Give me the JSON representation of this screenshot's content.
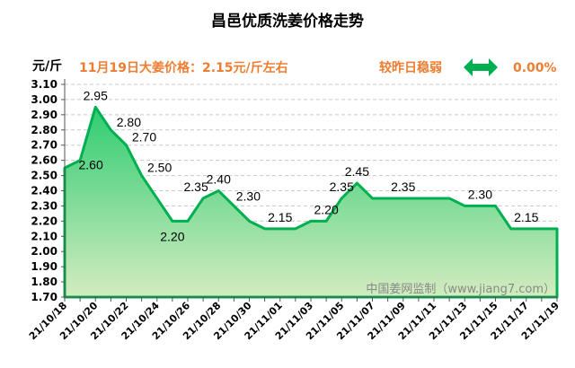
{
  "chart_data": {
    "type": "area",
    "title": "昌邑优质洗姜价格走势",
    "ylabel": "元/斤",
    "headline": "11月19日大姜价格：2.15元/斤左右",
    "change_text": "较昨日稳弱",
    "change_percent": "0.00%",
    "watermark": "中国姜网监制（www.jiang7.com）",
    "ylim": [
      1.7,
      3.1
    ],
    "yticks": [
      "1.70",
      "1.80",
      "1.90",
      "2.00",
      "2.10",
      "2.20",
      "2.30",
      "2.40",
      "2.50",
      "2.60",
      "2.70",
      "2.80",
      "2.90",
      "3.00",
      "3.10"
    ],
    "grid": true,
    "x": [
      "21/10/18",
      "21/10/19",
      "21/10/20",
      "21/10/21",
      "21/10/22",
      "21/10/23",
      "21/10/24",
      "21/10/25",
      "21/10/26",
      "21/10/27",
      "21/10/28",
      "21/10/29",
      "21/10/30",
      "21/10/31",
      "21/11/01",
      "21/11/02",
      "21/11/03",
      "21/11/04",
      "21/11/05",
      "21/11/06",
      "21/11/07",
      "21/11/08",
      "21/11/09",
      "21/11/10",
      "21/11/11",
      "21/11/12",
      "21/11/13",
      "21/11/14",
      "21/11/15",
      "21/11/16",
      "21/11/17",
      "21/11/18",
      "21/11/19"
    ],
    "xtick_labels": [
      "21/10/18",
      "21/10/20",
      "21/10/22",
      "21/10/24",
      "21/10/26",
      "21/10/28",
      "21/10/30",
      "21/11/01",
      "21/11/03",
      "21/11/05",
      "21/11/07",
      "21/11/09",
      "21/11/11",
      "21/11/13",
      "21/11/15",
      "21/11/17",
      "21/11/19"
    ],
    "values": [
      2.55,
      2.6,
      2.95,
      2.8,
      2.7,
      2.5,
      2.35,
      2.2,
      2.2,
      2.35,
      2.4,
      2.3,
      2.2,
      2.15,
      2.15,
      2.15,
      2.2,
      2.2,
      2.35,
      2.45,
      2.35,
      2.35,
      2.35,
      2.35,
      2.35,
      2.35,
      2.3,
      2.3,
      2.3,
      2.15,
      2.15,
      2.15,
      2.15
    ],
    "data_labels": [
      {
        "index": 1,
        "text": "2.60"
      },
      {
        "index": 2,
        "text": "2.95"
      },
      {
        "index": 3,
        "text": "2.80"
      },
      {
        "index": 4,
        "text": "2.70"
      },
      {
        "index": 5,
        "text": "2.50"
      },
      {
        "index": 7,
        "text": "2.20"
      },
      {
        "index": 9,
        "text": "2.35"
      },
      {
        "index": 10,
        "text": "2.40"
      },
      {
        "index": 11,
        "text": "2.30"
      },
      {
        "index": 14,
        "text": "2.15"
      },
      {
        "index": 17,
        "text": "2.20"
      },
      {
        "index": 18,
        "text": "2.35"
      },
      {
        "index": 19,
        "text": "2.45"
      },
      {
        "index": 22,
        "text": "2.35"
      },
      {
        "index": 27,
        "text": "2.30"
      },
      {
        "index": 30,
        "text": "2.15"
      }
    ],
    "colors": {
      "line": "#00b050",
      "fill_top": "#2ecc71",
      "fill_bottom": "#d4ecc0",
      "accent": "#ed7d31",
      "arrow": "#00b050"
    }
  }
}
